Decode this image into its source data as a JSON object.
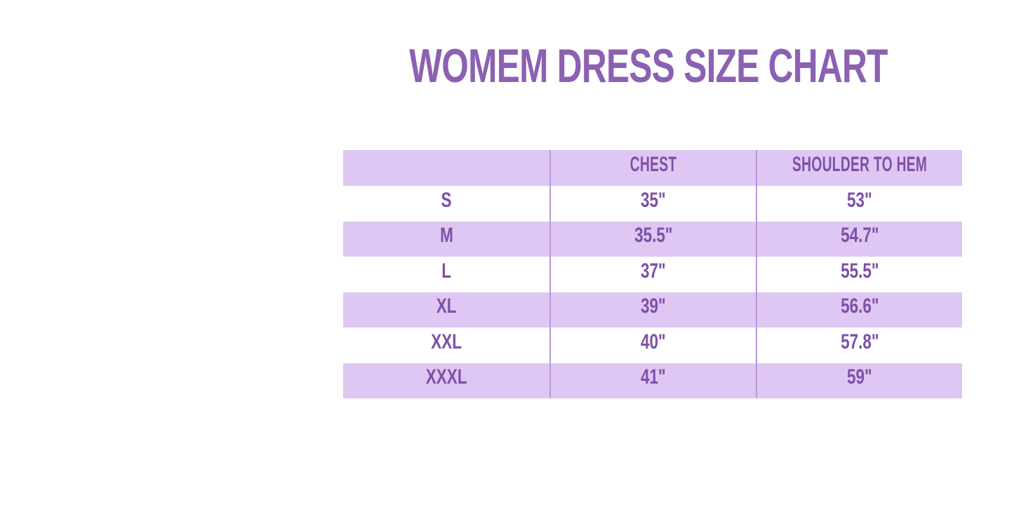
{
  "title": "WOMEM DRESS SIZE CHART",
  "colors": {
    "title_text": "#8b61b1",
    "table_text": "#7e50a8",
    "stripe_bg": "#dec7f2",
    "divider": "#bb96dd",
    "page_bg": "#ffffff"
  },
  "chart_data": {
    "type": "table",
    "title": "WOMEM DRESS SIZE CHART",
    "columns": [
      "",
      "CHEST",
      "SHOULDER TO HEM"
    ],
    "rows": [
      [
        "S",
        "35\"",
        "53\""
      ],
      [
        "M",
        "35.5\"",
        "54.7\""
      ],
      [
        "L",
        "37\"",
        "55.5\""
      ],
      [
        "XL",
        "39\"",
        "56.6\""
      ],
      [
        "XXL",
        "40\"",
        "57.8\""
      ],
      [
        "XXXL",
        "41\"",
        "59\""
      ]
    ],
    "layout": {
      "stripe_pattern": "header and even data rows (M, XL, XXXL) lavender; others white",
      "grid": "vertical dividers only, no horizontal or outer borders"
    }
  }
}
